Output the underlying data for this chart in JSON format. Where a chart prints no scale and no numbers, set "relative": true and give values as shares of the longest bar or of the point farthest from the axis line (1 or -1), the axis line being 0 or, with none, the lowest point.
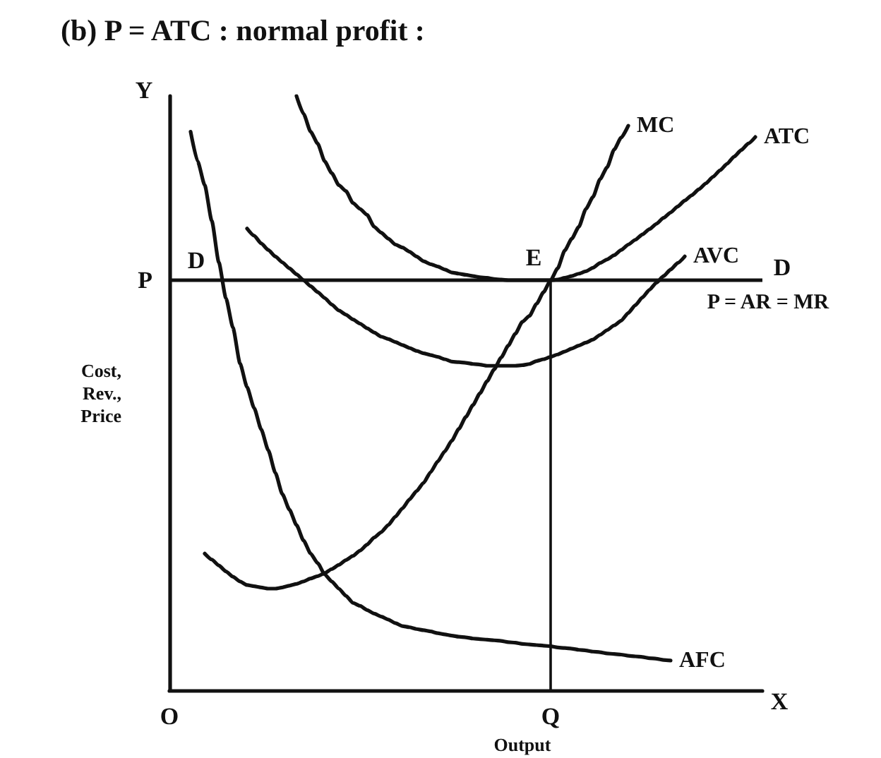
{
  "chart_data": {
    "type": "line",
    "title": "(b) P = ATC : normal profit :",
    "xlabel": "Output",
    "ylabel": "Cost, Rev., Price",
    "relative": true,
    "categories": [
      "O",
      null,
      null,
      null,
      null,
      null,
      null,
      null,
      null,
      null,
      null,
      null,
      null,
      null,
      null,
      null,
      null,
      null,
      null,
      null,
      null,
      null,
      null,
      null,
      null,
      null,
      null,
      null,
      null,
      null,
      null,
      null,
      null,
      null,
      null,
      null,
      null,
      null,
      null,
      null,
      null,
      null,
      null,
      null,
      null,
      null,
      null,
      null,
      null,
      null,
      null,
      null,
      null,
      null,
      "Q",
      null,
      null,
      null,
      null,
      null,
      null,
      null,
      null,
      null,
      null,
      null,
      null,
      null,
      null,
      null,
      null,
      null,
      null,
      null,
      null,
      null,
      null,
      null,
      null,
      null,
      null,
      null,
      null,
      null,
      null
    ],
    "series": [
      {
        "name": "MC",
        "color": "#111111",
        "values": [
          null,
          null,
          null,
          null,
          null,
          0.23,
          0.22,
          0.21,
          0.2,
          0.191,
          0.183,
          0.177,
          0.175,
          0.173,
          0.171,
          0.171,
          0.173,
          0.176,
          0.179,
          0.183,
          0.188,
          0.192,
          0.197,
          0.204,
          0.211,
          0.219,
          0.226,
          0.235,
          0.245,
          0.257,
          0.266,
          0.278,
          0.292,
          0.306,
          0.321,
          0.335,
          0.349,
          0.367,
          0.385,
          0.402,
          0.42,
          0.44,
          0.46,
          0.48,
          0.5,
          0.52,
          0.54,
          0.56,
          0.58,
          0.6,
          0.62,
          0.63,
          0.65,
          0.67,
          0.69,
          0.71,
          0.74,
          0.76,
          0.78,
          0.81,
          0.83,
          0.86,
          0.88,
          0.91,
          0.93,
          0.95,
          null,
          null,
          null,
          null,
          null,
          null,
          null,
          null,
          null,
          null,
          null,
          null,
          null,
          null,
          null,
          null,
          null,
          null,
          null
        ]
      },
      {
        "name": "ATC",
        "color": "#111111",
        "values": [
          null,
          null,
          null,
          null,
          null,
          null,
          null,
          null,
          null,
          null,
          null,
          null,
          null,
          null,
          null,
          null,
          null,
          null,
          1,
          0.97,
          0.94,
          0.92,
          0.89,
          0.87,
          0.85,
          0.84,
          0.82,
          0.81,
          0.8,
          0.78,
          0.77,
          0.76,
          0.75,
          0.745,
          0.738,
          0.73,
          0.722,
          0.717,
          0.713,
          0.708,
          0.703,
          0.701,
          0.699,
          0.697,
          0.695,
          0.694,
          0.692,
          0.691,
          0.69,
          0.69,
          0.69,
          0.69,
          0.69,
          0.69,
          0.69,
          0.691,
          0.694,
          0.697,
          0.701,
          0.705,
          0.711,
          0.719,
          0.725,
          0.732,
          0.741,
          0.75,
          0.758,
          0.767,
          0.776,
          0.785,
          0.795,
          0.804,
          0.814,
          0.824,
          0.833,
          0.843,
          0.853,
          0.864,
          0.875,
          0.886,
          0.898,
          0.909,
          0.92,
          0.931,
          null
        ]
      },
      {
        "name": "AVC",
        "color": "#111111",
        "values": [
          null,
          null,
          null,
          null,
          null,
          null,
          null,
          null,
          null,
          null,
          null,
          0.777,
          0.765,
          0.752,
          0.741,
          0.73,
          0.72,
          0.71,
          0.7,
          0.69,
          0.68,
          0.67,
          0.66,
          0.649,
          0.639,
          0.632,
          0.624,
          0.617,
          0.609,
          0.602,
          0.595,
          0.591,
          0.586,
          0.581,
          0.576,
          0.571,
          0.567,
          0.564,
          0.561,
          0.557,
          0.553,
          0.552,
          0.551,
          0.549,
          0.548,
          0.546,
          0.546,
          0.546,
          0.546,
          0.546,
          0.547,
          0.549,
          0.554,
          0.557,
          0.561,
          0.565,
          0.57,
          0.575,
          0.58,
          0.585,
          0.59,
          0.598,
          0.606,
          0.614,
          0.622,
          0.635,
          0.648,
          0.661,
          0.674,
          0.686,
          0.697,
          0.708,
          0.719,
          0.73,
          null,
          null,
          null,
          null,
          null,
          null,
          null,
          null,
          null,
          null,
          null
        ]
      },
      {
        "name": "AFC",
        "color": "#111111",
        "values": [
          null,
          null,
          null,
          0.94,
          0.89,
          0.85,
          0.79,
          0.72,
          0.66,
          0.61,
          0.55,
          0.51,
          0.475,
          0.439,
          0.404,
          0.366,
          0.33,
          0.304,
          0.278,
          0.252,
          0.23,
          0.214,
          0.195,
          0.183,
          0.171,
          0.159,
          0.147,
          0.142,
          0.135,
          0.129,
          0.124,
          0.119,
          0.113,
          0.108,
          0.106,
          0.103,
          0.101,
          0.099,
          0.096,
          0.094,
          0.092,
          0.09,
          0.089,
          0.087,
          0.086,
          0.085,
          0.084,
          0.083,
          0.081,
          0.08,
          0.078,
          0.077,
          0.076,
          0.075,
          0.074,
          0.072,
          0.071,
          0.07,
          0.068,
          0.067,
          0.065,
          0.064,
          0.062,
          0.061,
          0.06,
          0.058,
          0.057,
          0.056,
          0.054,
          0.053,
          0.051,
          0.05,
          null,
          null,
          null,
          null,
          null,
          null,
          null,
          null,
          null,
          null,
          null,
          null,
          null
        ]
      }
    ],
    "ref_lines": [
      {
        "axis": "y",
        "value": 0.69,
        "label": "P"
      },
      {
        "axis": "x",
        "value": "Q"
      }
    ],
    "annotations": [
      {
        "text": "E",
        "x": "Q",
        "y": 0.69
      },
      "D",
      "D",
      "P = AR = MR",
      "Y",
      "X"
    ]
  }
}
